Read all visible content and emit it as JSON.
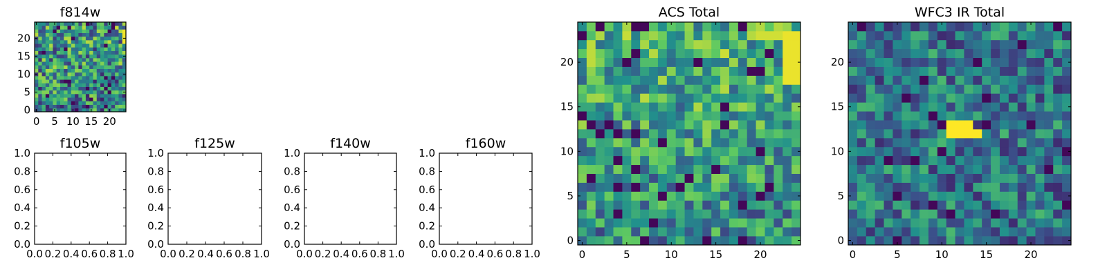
{
  "figure": {
    "colormap": "viridis",
    "colors": [
      "#440154",
      "#3b528b",
      "#21918c",
      "#5ec962",
      "#fde725"
    ]
  },
  "chart_data": [
    {
      "id": "f814w",
      "type": "heatmap",
      "title": "f814w",
      "grid_size": [
        25,
        25
      ],
      "xlim": [
        -0.5,
        24.5
      ],
      "ylim": [
        -0.5,
        24.5
      ],
      "xticks": [
        0,
        5,
        10,
        15,
        20
      ],
      "yticks": [
        0,
        5,
        10,
        15,
        20
      ],
      "pattern": "noise, brighter toward upper-left and right edge; bright patch at x=24, y=19-22",
      "hotspots": [
        {
          "x": 24,
          "y": 19,
          "w": 1,
          "h": 4,
          "value": 0.98
        }
      ],
      "grid": false
    },
    {
      "id": "f105w",
      "type": "scatter",
      "title": "f105w",
      "empty": true,
      "xlim": [
        0.0,
        1.0
      ],
      "ylim": [
        0.0,
        1.0
      ],
      "xticks": [
        "0.0",
        "0.2",
        "0.4",
        "0.6",
        "0.8",
        "1.0"
      ],
      "yticks": [
        "0.0",
        "0.2",
        "0.4",
        "0.6",
        "0.8",
        "1.0"
      ]
    },
    {
      "id": "f125w",
      "type": "scatter",
      "title": "f125w",
      "empty": true,
      "xlim": [
        0.0,
        1.0
      ],
      "ylim": [
        0.0,
        1.0
      ],
      "xticks": [
        "0.0",
        "0.2",
        "0.4",
        "0.6",
        "0.8",
        "1.0"
      ],
      "yticks": [
        "0.0",
        "0.2",
        "0.4",
        "0.6",
        "0.8",
        "1.0"
      ]
    },
    {
      "id": "f140w",
      "type": "scatter",
      "title": "f140w",
      "empty": true,
      "xlim": [
        0.0,
        1.0
      ],
      "ylim": [
        0.0,
        1.0
      ],
      "xticks": [
        "0.0",
        "0.2",
        "0.4",
        "0.6",
        "0.8",
        "1.0"
      ],
      "yticks": [
        "0.0",
        "0.2",
        "0.4",
        "0.6",
        "0.8",
        "1.0"
      ]
    },
    {
      "id": "f160w",
      "type": "scatter",
      "title": "f160w",
      "empty": true,
      "xlim": [
        0.0,
        1.0
      ],
      "ylim": [
        0.0,
        1.0
      ],
      "xticks": [
        "0.0",
        "0.2",
        "0.4",
        "0.6",
        "0.8",
        "1.0"
      ],
      "yticks": [
        "0.0",
        "0.2",
        "0.4",
        "0.6",
        "0.8",
        "1.0"
      ]
    },
    {
      "id": "acs_total",
      "type": "heatmap",
      "title": "ACS Total",
      "grid_size": [
        25,
        25
      ],
      "xlim": [
        -0.5,
        24.5
      ],
      "ylim": [
        -0.5,
        24.5
      ],
      "xticks": [
        0,
        5,
        10,
        15,
        20
      ],
      "yticks": [
        0,
        5,
        10,
        15,
        20
      ],
      "pattern": "noise, brighter in upper region; bright patches top-left and upper-right",
      "hotspots": [
        {
          "x": 23,
          "y": 18,
          "w": 2,
          "h": 6,
          "value": 0.97
        },
        {
          "x": 20,
          "y": 23,
          "w": 3,
          "h": 1,
          "value": 0.93
        },
        {
          "x": 1,
          "y": 20,
          "w": 1,
          "h": 3,
          "value": 0.9
        }
      ],
      "grid": false
    },
    {
      "id": "wfc3_ir_total",
      "type": "heatmap",
      "title": "WFC3 IR Total",
      "grid_size": [
        25,
        25
      ],
      "xlim": [
        -0.5,
        24.5
      ],
      "ylim": [
        -0.5,
        24.5
      ],
      "xticks": [
        0,
        5,
        10,
        15,
        20
      ],
      "yticks": [
        0,
        5,
        10,
        15,
        20
      ],
      "pattern": "noise, mostly mid values; single bright block near center",
      "hotspots": [
        {
          "x": 11,
          "y": 12,
          "w": 4,
          "h": 1,
          "value": 1.0
        },
        {
          "x": 11,
          "y": 13,
          "w": 3,
          "h": 1,
          "value": 1.0
        }
      ],
      "grid": false
    }
  ]
}
